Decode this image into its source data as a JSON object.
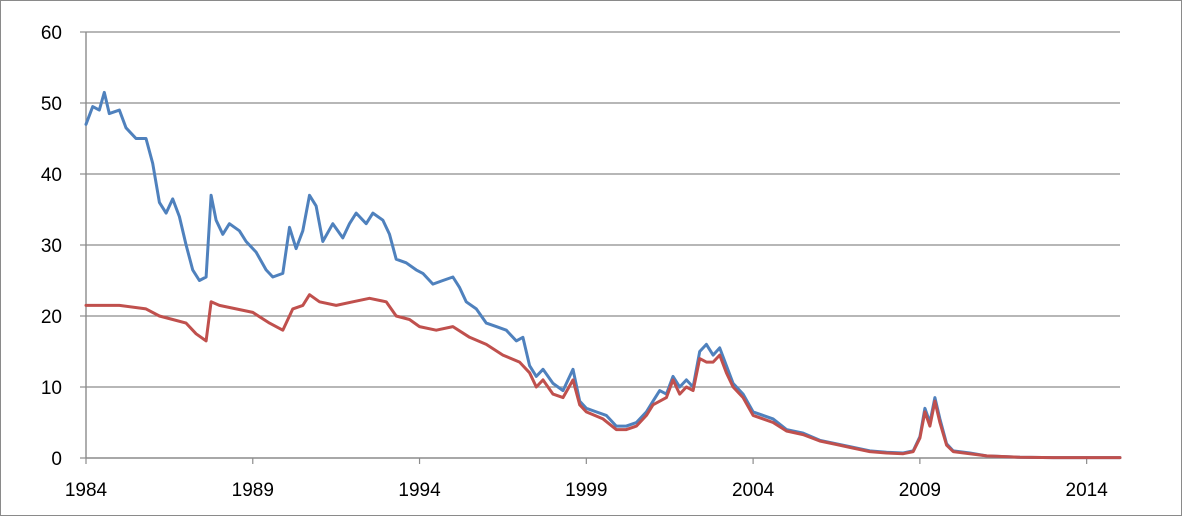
{
  "chart_data": {
    "type": "line",
    "title": "",
    "xlabel": "",
    "ylabel": "",
    "xlim": [
      1984,
      2015
    ],
    "ylim": [
      0,
      60
    ],
    "x_ticks": [
      1984,
      1989,
      1994,
      1999,
      2004,
      2009,
      2014
    ],
    "y_ticks": [
      0,
      10,
      20,
      30,
      40,
      50,
      60
    ],
    "x_tick_labels": [
      "1984",
      "1989",
      "1994",
      "1999",
      "2004",
      "2009",
      "2014"
    ],
    "y_tick_labels": [
      "0",
      "10",
      "20",
      "30",
      "40",
      "50",
      "60"
    ],
    "grid": "horizontal",
    "legend": "none",
    "series": [
      {
        "color": "#4f81bd",
        "points": [
          [
            1984.0,
            47.0
          ],
          [
            1984.2,
            49.5
          ],
          [
            1984.4,
            49.0
          ],
          [
            1984.55,
            51.5
          ],
          [
            1984.7,
            48.5
          ],
          [
            1985.0,
            49.0
          ],
          [
            1985.2,
            46.5
          ],
          [
            1985.5,
            45.0
          ],
          [
            1985.8,
            45.0
          ],
          [
            1986.0,
            41.5
          ],
          [
            1986.2,
            36.0
          ],
          [
            1986.4,
            34.5
          ],
          [
            1986.6,
            36.5
          ],
          [
            1986.8,
            34.0
          ],
          [
            1987.0,
            30.0
          ],
          [
            1987.2,
            26.5
          ],
          [
            1987.4,
            25.0
          ],
          [
            1987.6,
            25.5
          ],
          [
            1987.75,
            37.0
          ],
          [
            1987.9,
            33.5
          ],
          [
            1988.1,
            31.5
          ],
          [
            1988.3,
            33.0
          ],
          [
            1988.6,
            32.0
          ],
          [
            1988.8,
            30.5
          ],
          [
            1989.1,
            29.0
          ],
          [
            1989.4,
            26.5
          ],
          [
            1989.6,
            25.5
          ],
          [
            1989.9,
            26.0
          ],
          [
            1990.1,
            32.5
          ],
          [
            1990.3,
            29.5
          ],
          [
            1990.5,
            32.0
          ],
          [
            1990.7,
            37.0
          ],
          [
            1990.9,
            35.5
          ],
          [
            1991.1,
            30.5
          ],
          [
            1991.4,
            33.0
          ],
          [
            1991.7,
            31.0
          ],
          [
            1991.9,
            33.0
          ],
          [
            1992.1,
            34.5
          ],
          [
            1992.4,
            33.0
          ],
          [
            1992.6,
            34.5
          ],
          [
            1992.9,
            33.5
          ],
          [
            1993.1,
            31.5
          ],
          [
            1993.3,
            28.0
          ],
          [
            1993.6,
            27.5
          ],
          [
            1993.9,
            26.5
          ],
          [
            1994.1,
            26.0
          ],
          [
            1994.4,
            24.5
          ],
          [
            1994.7,
            25.0
          ],
          [
            1995.0,
            25.5
          ],
          [
            1995.2,
            24.0
          ],
          [
            1995.4,
            22.0
          ],
          [
            1995.7,
            21.0
          ],
          [
            1996.0,
            19.0
          ],
          [
            1996.3,
            18.5
          ],
          [
            1996.6,
            18.0
          ],
          [
            1996.9,
            16.5
          ],
          [
            1997.1,
            17.0
          ],
          [
            1997.3,
            13.0
          ],
          [
            1997.5,
            11.5
          ],
          [
            1997.7,
            12.5
          ],
          [
            1998.0,
            10.5
          ],
          [
            1998.3,
            9.5
          ],
          [
            1998.6,
            12.5
          ],
          [
            1998.8,
            8.0
          ],
          [
            1999.0,
            7.0
          ],
          [
            1999.3,
            6.5
          ],
          [
            1999.6,
            6.0
          ],
          [
            1999.9,
            4.5
          ],
          [
            2000.2,
            4.5
          ],
          [
            2000.5,
            5.0
          ],
          [
            2000.8,
            6.5
          ],
          [
            2001.0,
            8.0
          ],
          [
            2001.2,
            9.5
          ],
          [
            2001.4,
            9.0
          ],
          [
            2001.6,
            11.5
          ],
          [
            2001.8,
            10.0
          ],
          [
            2002.0,
            11.0
          ],
          [
            2002.2,
            10.0
          ],
          [
            2002.4,
            15.0
          ],
          [
            2002.6,
            16.0
          ],
          [
            2002.8,
            14.5
          ],
          [
            2003.0,
            15.5
          ],
          [
            2003.2,
            13.0
          ],
          [
            2003.4,
            10.5
          ],
          [
            2003.7,
            9.0
          ],
          [
            2004.0,
            6.5
          ],
          [
            2004.3,
            6.0
          ],
          [
            2004.6,
            5.5
          ],
          [
            2005.0,
            4.0
          ],
          [
            2005.5,
            3.5
          ],
          [
            2006.0,
            2.5
          ],
          [
            2006.5,
            2.0
          ],
          [
            2007.0,
            1.5
          ],
          [
            2007.5,
            1.0
          ],
          [
            2008.0,
            0.8
          ],
          [
            2008.5,
            0.7
          ],
          [
            2008.8,
            1.0
          ],
          [
            2009.0,
            3.0
          ],
          [
            2009.15,
            7.0
          ],
          [
            2009.3,
            5.0
          ],
          [
            2009.45,
            8.5
          ],
          [
            2009.6,
            5.5
          ],
          [
            2009.8,
            2.0
          ],
          [
            2010.0,
            1.0
          ],
          [
            2010.5,
            0.7
          ],
          [
            2011.0,
            0.3
          ],
          [
            2012.0,
            0.1
          ],
          [
            2013.0,
            0.05
          ],
          [
            2014.0,
            0.05
          ],
          [
            2015.0,
            0.05
          ]
        ]
      },
      {
        "color": "#c0504d",
        "points": [
          [
            1984.0,
            21.5
          ],
          [
            1985.0,
            21.5
          ],
          [
            1985.8,
            21.0
          ],
          [
            1986.2,
            20.0
          ],
          [
            1986.6,
            19.5
          ],
          [
            1987.0,
            19.0
          ],
          [
            1987.3,
            17.5
          ],
          [
            1987.6,
            16.5
          ],
          [
            1987.75,
            22.0
          ],
          [
            1988.0,
            21.5
          ],
          [
            1988.5,
            21.0
          ],
          [
            1989.0,
            20.5
          ],
          [
            1989.5,
            19.0
          ],
          [
            1989.9,
            18.0
          ],
          [
            1990.2,
            21.0
          ],
          [
            1990.5,
            21.5
          ],
          [
            1990.7,
            23.0
          ],
          [
            1991.0,
            22.0
          ],
          [
            1991.5,
            21.5
          ],
          [
            1992.0,
            22.0
          ],
          [
            1992.5,
            22.5
          ],
          [
            1993.0,
            22.0
          ],
          [
            1993.3,
            20.0
          ],
          [
            1993.7,
            19.5
          ],
          [
            1994.0,
            18.5
          ],
          [
            1994.5,
            18.0
          ],
          [
            1995.0,
            18.5
          ],
          [
            1995.5,
            17.0
          ],
          [
            1996.0,
            16.0
          ],
          [
            1996.5,
            14.5
          ],
          [
            1997.0,
            13.5
          ],
          [
            1997.3,
            12.0
          ],
          [
            1997.5,
            10.0
          ],
          [
            1997.7,
            11.0
          ],
          [
            1998.0,
            9.0
          ],
          [
            1998.3,
            8.5
          ],
          [
            1998.6,
            11.0
          ],
          [
            1998.8,
            7.5
          ],
          [
            1999.0,
            6.5
          ],
          [
            1999.5,
            5.5
          ],
          [
            1999.9,
            4.0
          ],
          [
            2000.2,
            4.0
          ],
          [
            2000.5,
            4.5
          ],
          [
            2000.8,
            6.0
          ],
          [
            2001.0,
            7.5
          ],
          [
            2001.4,
            8.5
          ],
          [
            2001.6,
            11.0
          ],
          [
            2001.8,
            9.0
          ],
          [
            2002.0,
            10.0
          ],
          [
            2002.2,
            9.5
          ],
          [
            2002.4,
            14.0
          ],
          [
            2002.6,
            13.5
          ],
          [
            2002.8,
            13.5
          ],
          [
            2003.0,
            14.5
          ],
          [
            2003.2,
            12.0
          ],
          [
            2003.4,
            10.0
          ],
          [
            2003.7,
            8.5
          ],
          [
            2004.0,
            6.0
          ],
          [
            2004.3,
            5.5
          ],
          [
            2004.6,
            5.0
          ],
          [
            2005.0,
            3.8
          ],
          [
            2005.5,
            3.3
          ],
          [
            2006.0,
            2.4
          ],
          [
            2006.5,
            1.9
          ],
          [
            2007.0,
            1.4
          ],
          [
            2007.5,
            0.9
          ],
          [
            2008.0,
            0.7
          ],
          [
            2008.5,
            0.6
          ],
          [
            2008.8,
            0.9
          ],
          [
            2009.0,
            2.8
          ],
          [
            2009.15,
            6.5
          ],
          [
            2009.3,
            4.5
          ],
          [
            2009.45,
            8.0
          ],
          [
            2009.6,
            5.0
          ],
          [
            2009.8,
            1.8
          ],
          [
            2010.0,
            0.9
          ],
          [
            2010.5,
            0.6
          ],
          [
            2011.0,
            0.3
          ],
          [
            2012.0,
            0.1
          ],
          [
            2013.0,
            0.05
          ],
          [
            2014.0,
            0.05
          ],
          [
            2015.0,
            0.05
          ]
        ]
      }
    ]
  }
}
